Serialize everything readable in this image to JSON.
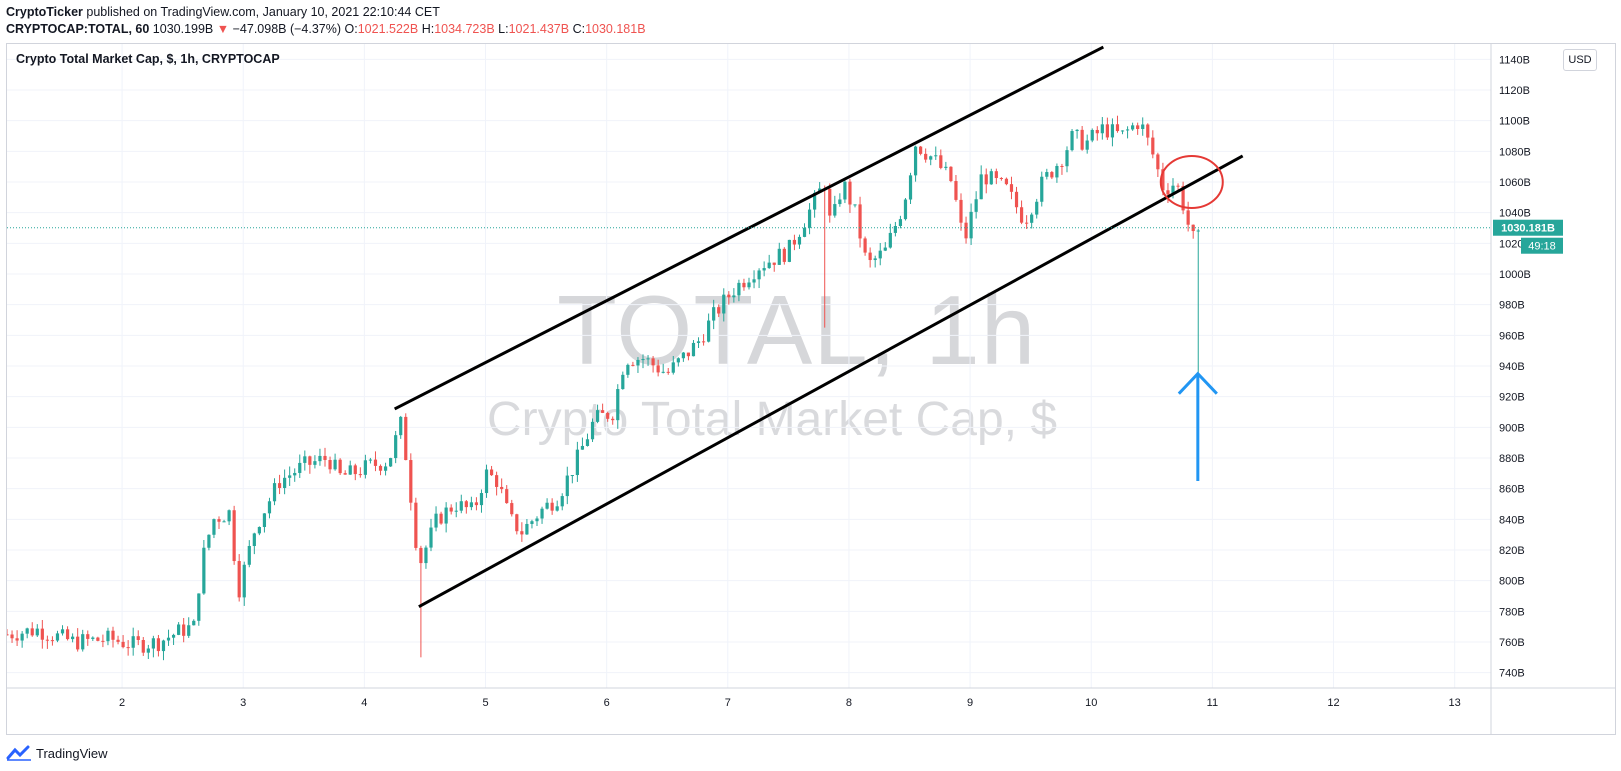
{
  "header": {
    "author": "CryptoTicker",
    "published_text": " published on TradingView.com, January 10, 2021 22:10:44 CET"
  },
  "ohlc": {
    "symbol": "CRYPTOCAP:TOTAL, 60",
    "last": "1030.199B",
    "change_arrow": "▼",
    "change": "−47.098B (−4.37%)",
    "o_label": "O:",
    "o": "1021.522B",
    "h_label": "H:",
    "h": "1034.723B",
    "l_label": "L:",
    "l": "1021.437B",
    "c_label": "C:",
    "c": "1030.181B"
  },
  "chart_title": "Crypto Total Market Cap, $, 1h, CRYPTOCAP",
  "currency_button": "USD",
  "watermark": {
    "symbol": "TOTAL, 1h",
    "name": "Crypto Total Market Cap, $"
  },
  "footer_brand": "TradingView",
  "colors": {
    "up": "#26a69a",
    "down": "#ef5350",
    "channel": "#000000",
    "circle": "#e53935",
    "arrow": "#2196f3",
    "price_line": "#26a69a"
  },
  "chart_data": {
    "type": "candlestick",
    "title": "Crypto Total Market Cap, $, 1h, CRYPTOCAP",
    "x_ticks": [
      "2",
      "3",
      "4",
      "5",
      "6",
      "7",
      "8",
      "9",
      "10",
      "11",
      "12",
      "13"
    ],
    "y_ticks": [
      "740B",
      "760B",
      "780B",
      "800B",
      "820B",
      "840B",
      "860B",
      "880B",
      "900B",
      "920B",
      "940B",
      "960B",
      "980B",
      "1000B",
      "1020B",
      "1040B",
      "1060B",
      "1080B",
      "1100B",
      "1120B",
      "1140B"
    ],
    "ylim": [
      730,
      1150
    ],
    "xlim_days": [
      1.05,
      13.3
    ],
    "last_price_label": "1030.181B",
    "last_price": 1030.181,
    "countdown_label": "49:18",
    "grid": true,
    "ohlc_close_path": [
      [
        1.05,
        765
      ],
      [
        1.3,
        768
      ],
      [
        1.6,
        760
      ],
      [
        1.9,
        762
      ],
      [
        2.1,
        758
      ],
      [
        2.3,
        760
      ],
      [
        2.5,
        768
      ],
      [
        2.6,
        770
      ],
      [
        2.65,
        810
      ],
      [
        2.75,
        840
      ],
      [
        2.9,
        845
      ],
      [
        2.95,
        790
      ],
      [
        3.1,
        835
      ],
      [
        3.3,
        865
      ],
      [
        3.5,
        875
      ],
      [
        3.7,
        880
      ],
      [
        3.8,
        868
      ],
      [
        3.9,
        870
      ],
      [
        4.05,
        875
      ],
      [
        4.2,
        878
      ],
      [
        4.3,
        902
      ],
      [
        4.35,
        878
      ],
      [
        4.45,
        810
      ],
      [
        4.6,
        840
      ],
      [
        4.75,
        850
      ],
      [
        4.9,
        845
      ],
      [
        5.0,
        870
      ],
      [
        5.1,
        865
      ],
      [
        5.2,
        840
      ],
      [
        5.3,
        832
      ],
      [
        5.45,
        845
      ],
      [
        5.6,
        855
      ],
      [
        5.75,
        878
      ],
      [
        5.9,
        905
      ],
      [
        6.05,
        910
      ],
      [
        6.15,
        945
      ],
      [
        6.3,
        945
      ],
      [
        6.5,
        935
      ],
      [
        6.75,
        955
      ],
      [
        6.9,
        975
      ],
      [
        7.05,
        990
      ],
      [
        7.25,
        1005
      ],
      [
        7.5,
        1015
      ],
      [
        7.7,
        1045
      ],
      [
        7.8,
        1060
      ],
      [
        7.85,
        1030
      ],
      [
        7.95,
        1060
      ],
      [
        8.05,
        1040
      ],
      [
        8.15,
        1005
      ],
      [
        8.3,
        1015
      ],
      [
        8.45,
        1045
      ],
      [
        8.55,
        1085
      ],
      [
        8.7,
        1075
      ],
      [
        8.85,
        1060
      ],
      [
        8.95,
        1020
      ],
      [
        9.1,
        1065
      ],
      [
        9.3,
        1055
      ],
      [
        9.45,
        1035
      ],
      [
        9.6,
        1060
      ],
      [
        9.75,
        1075
      ],
      [
        9.85,
        1090
      ],
      [
        9.95,
        1085
      ],
      [
        10.1,
        1095
      ],
      [
        10.25,
        1090
      ],
      [
        10.4,
        1100
      ],
      [
        10.5,
        1080
      ],
      [
        10.6,
        1055
      ],
      [
        10.7,
        1060
      ],
      [
        10.78,
        1040
      ],
      [
        10.82,
        1025
      ],
      [
        10.87,
        1020
      ],
      [
        10.92,
        1030
      ]
    ],
    "low_wick_min": 935,
    "channel_upper": [
      [
        4.25,
        912
      ],
      [
        10.1,
        1148
      ]
    ],
    "channel_lower": [
      [
        4.45,
        783
      ],
      [
        11.25,
        1077
      ]
    ],
    "annotations": [
      {
        "type": "ellipse",
        "near": [
          10.83,
          1060
        ]
      },
      {
        "type": "arrow_up",
        "x": 10.88,
        "from": 865,
        "to": 935
      }
    ]
  }
}
